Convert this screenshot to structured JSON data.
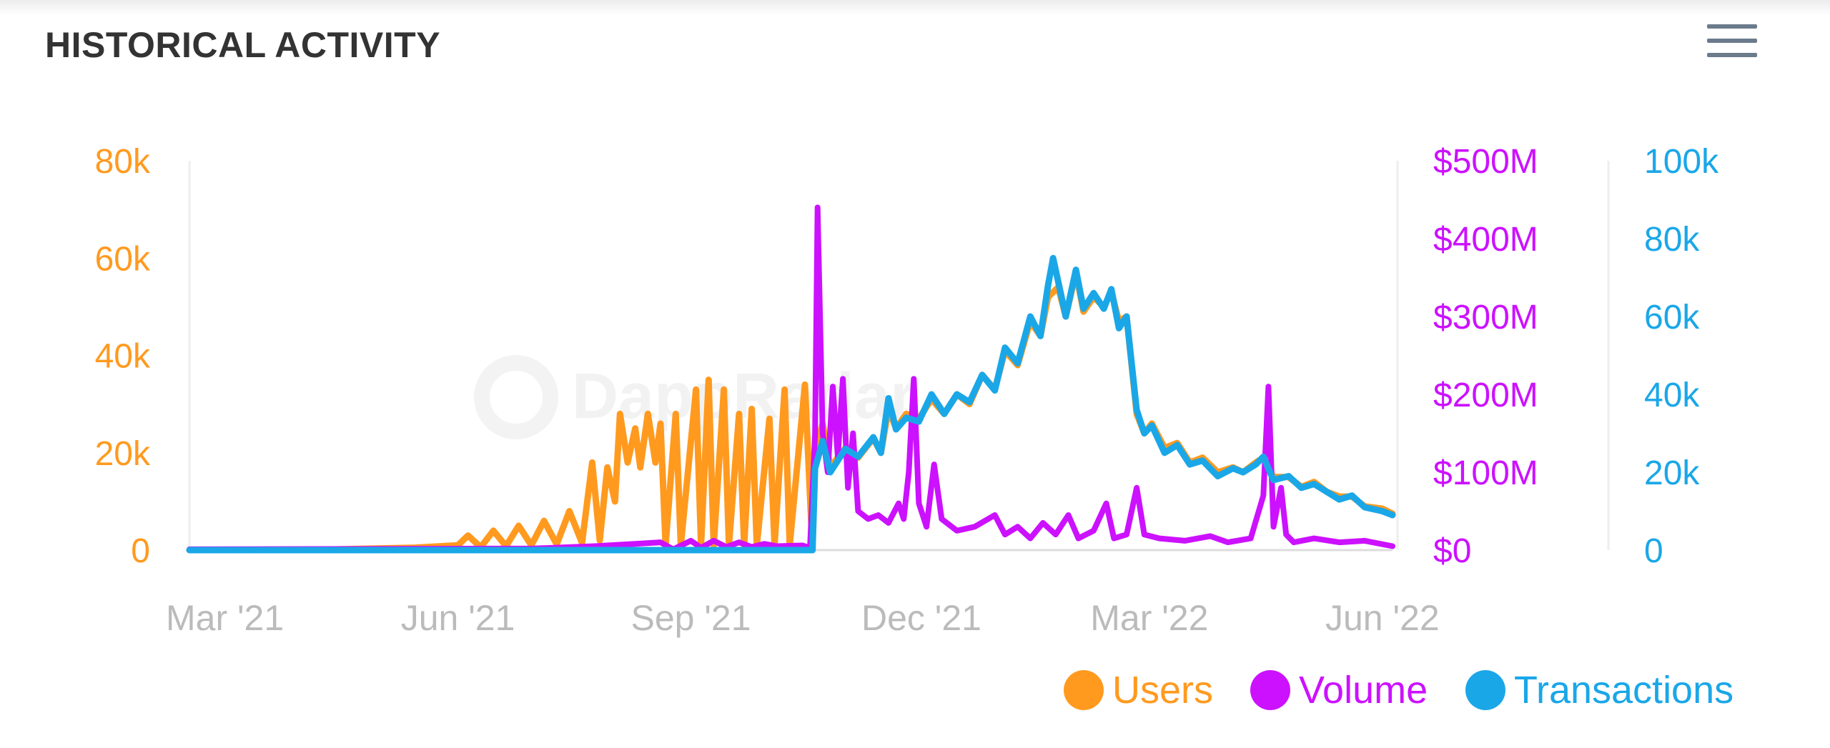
{
  "header": {
    "title": "HISTORICAL ACTIVITY",
    "menu_icon": "hamburger-menu-icon"
  },
  "watermark": {
    "text": "DappRadar"
  },
  "colors": {
    "users": "#ff9a1f",
    "volume": "#cc11ff",
    "transactions": "#1aa7e8",
    "axis_x": "#bbbbbb",
    "title": "#333333"
  },
  "legend": [
    {
      "key": "users",
      "label": "Users",
      "color": "#ff9a1f"
    },
    {
      "key": "volume",
      "label": "Volume",
      "color": "#cc11ff"
    },
    {
      "key": "transactions",
      "label": "Transactions",
      "color": "#1aa7e8"
    }
  ],
  "chart_data": {
    "type": "line",
    "title": "HISTORICAL ACTIVITY",
    "x_ticks": [
      "Mar '21",
      "Jun '21",
      "Sep '21",
      "Dec '21",
      "Mar '22",
      "Jun '22"
    ],
    "x_tick_dates": [
      "2021-03-01",
      "2021-06-01",
      "2021-09-01",
      "2021-12-01",
      "2022-03-01",
      "2022-06-01"
    ],
    "x_range": [
      "2021-02-15",
      "2022-06-05"
    ],
    "grid": false,
    "legend_position": "bottom-right",
    "y_axes": [
      {
        "name": "Users",
        "side": "left",
        "ylim": [
          0,
          80000
        ],
        "ticks": [
          "0",
          "20k",
          "40k",
          "60k",
          "80k"
        ],
        "color": "#ff9a1f"
      },
      {
        "name": "Volume",
        "side": "right",
        "ylim": [
          0,
          500000000
        ],
        "ticks": [
          "$0",
          "$100M",
          "$200M",
          "$300M",
          "$400M",
          "$500M"
        ],
        "color": "#cc11ff"
      },
      {
        "name": "Transactions",
        "side": "right-outer",
        "ylim": [
          0,
          100000
        ],
        "ticks": [
          "0",
          "20k",
          "40k",
          "60k",
          "80k",
          "100k"
        ],
        "color": "#1aa7e8"
      }
    ],
    "series": [
      {
        "name": "Users",
        "axis": 0,
        "color": "#ff9a1f",
        "width": 9,
        "points": [
          [
            "2021-02-15",
            0
          ],
          [
            "2021-04-01",
            0
          ],
          [
            "2021-05-15",
            500
          ],
          [
            "2021-06-01",
            1000
          ],
          [
            "2021-06-05",
            3000
          ],
          [
            "2021-06-10",
            600
          ],
          [
            "2021-06-15",
            4000
          ],
          [
            "2021-06-20",
            800
          ],
          [
            "2021-06-25",
            5000
          ],
          [
            "2021-06-30",
            1000
          ],
          [
            "2021-07-05",
            6000
          ],
          [
            "2021-07-10",
            1200
          ],
          [
            "2021-07-15",
            8000
          ],
          [
            "2021-07-20",
            1500
          ],
          [
            "2021-07-24",
            18000
          ],
          [
            "2021-07-27",
            2000
          ],
          [
            "2021-07-30",
            17000
          ],
          [
            "2021-08-02",
            10000
          ],
          [
            "2021-08-04",
            28000
          ],
          [
            "2021-08-07",
            18000
          ],
          [
            "2021-08-10",
            25000
          ],
          [
            "2021-08-12",
            17000
          ],
          [
            "2021-08-15",
            28000
          ],
          [
            "2021-08-18",
            18000
          ],
          [
            "2021-08-20",
            26000
          ],
          [
            "2021-08-22",
            1000
          ],
          [
            "2021-08-26",
            28000
          ],
          [
            "2021-08-28",
            1000
          ],
          [
            "2021-09-03",
            33000
          ],
          [
            "2021-09-05",
            1000
          ],
          [
            "2021-09-08",
            35000
          ],
          [
            "2021-09-10",
            1000
          ],
          [
            "2021-09-14",
            33000
          ],
          [
            "2021-09-16",
            1000
          ],
          [
            "2021-09-20",
            28000
          ],
          [
            "2021-09-22",
            1000
          ],
          [
            "2021-09-25",
            29000
          ],
          [
            "2021-09-27",
            1000
          ],
          [
            "2021-10-02",
            27000
          ],
          [
            "2021-10-04",
            1000
          ],
          [
            "2021-10-08",
            33000
          ],
          [
            "2021-10-10",
            1000
          ],
          [
            "2021-10-16",
            34000
          ],
          [
            "2021-10-19",
            0
          ],
          [
            "2021-10-20",
            20000
          ],
          [
            "2021-10-23",
            26000
          ],
          [
            "2021-10-26",
            17000
          ],
          [
            "2021-11-01",
            21000
          ],
          [
            "2021-11-06",
            19000
          ],
          [
            "2021-11-12",
            23000
          ],
          [
            "2021-11-15",
            20000
          ],
          [
            "2021-11-18",
            29000
          ],
          [
            "2021-11-21",
            25000
          ],
          [
            "2021-11-25",
            28000
          ],
          [
            "2021-11-30",
            27000
          ],
          [
            "2021-12-05",
            31000
          ],
          [
            "2021-12-10",
            28000
          ],
          [
            "2021-12-15",
            32000
          ],
          [
            "2021-12-20",
            30000
          ],
          [
            "2021-12-25",
            36000
          ],
          [
            "2021-12-30",
            33000
          ],
          [
            "2022-01-03",
            41000
          ],
          [
            "2022-01-08",
            38000
          ],
          [
            "2022-01-13",
            47000
          ],
          [
            "2022-01-17",
            44000
          ],
          [
            "2022-01-20",
            52000
          ],
          [
            "2022-01-24",
            54000
          ],
          [
            "2022-01-27",
            48000
          ],
          [
            "2022-01-31",
            57000
          ],
          [
            "2022-02-03",
            49000
          ],
          [
            "2022-02-07",
            52000
          ],
          [
            "2022-02-11",
            50000
          ],
          [
            "2022-02-14",
            53000
          ],
          [
            "2022-02-17",
            47000
          ],
          [
            "2022-02-20",
            48000
          ],
          [
            "2022-02-24",
            28000
          ],
          [
            "2022-02-27",
            24000
          ],
          [
            "2022-03-02",
            26000
          ],
          [
            "2022-03-07",
            21000
          ],
          [
            "2022-03-12",
            22000
          ],
          [
            "2022-03-17",
            18000
          ],
          [
            "2022-03-22",
            19000
          ],
          [
            "2022-03-28",
            16000
          ],
          [
            "2022-04-03",
            17000
          ],
          [
            "2022-04-07",
            16000
          ],
          [
            "2022-04-12",
            18000
          ],
          [
            "2022-04-15",
            19000
          ],
          [
            "2022-04-19",
            15000
          ],
          [
            "2022-04-25",
            15000
          ],
          [
            "2022-04-30",
            13000
          ],
          [
            "2022-05-05",
            14000
          ],
          [
            "2022-05-10",
            12000
          ],
          [
            "2022-05-15",
            11000
          ],
          [
            "2022-05-20",
            11000
          ],
          [
            "2022-05-25",
            9000
          ],
          [
            "2022-06-01",
            8500
          ],
          [
            "2022-06-05",
            7500
          ]
        ]
      },
      {
        "name": "Volume",
        "axis": 1,
        "color": "#cc11ff",
        "width": 8,
        "points": [
          [
            "2021-02-15",
            1000000
          ],
          [
            "2021-07-01",
            2000000
          ],
          [
            "2021-07-25",
            5000000
          ],
          [
            "2021-08-10",
            8000000
          ],
          [
            "2021-08-20",
            10000000
          ],
          [
            "2021-08-25",
            1000000
          ],
          [
            "2021-09-01",
            12000000
          ],
          [
            "2021-09-05",
            3000000
          ],
          [
            "2021-09-10",
            12000000
          ],
          [
            "2021-09-15",
            4000000
          ],
          [
            "2021-09-20",
            10000000
          ],
          [
            "2021-09-25",
            4000000
          ],
          [
            "2021-09-30",
            8000000
          ],
          [
            "2021-10-05",
            5000000
          ],
          [
            "2021-10-15",
            6000000
          ],
          [
            "2021-10-18",
            3000000
          ],
          [
            "2021-10-20",
            150000000
          ],
          [
            "2021-10-21",
            440000000
          ],
          [
            "2021-10-23",
            150000000
          ],
          [
            "2021-10-25",
            100000000
          ],
          [
            "2021-10-27",
            210000000
          ],
          [
            "2021-10-29",
            120000000
          ],
          [
            "2021-10-31",
            220000000
          ],
          [
            "2021-11-02",
            80000000
          ],
          [
            "2021-11-04",
            150000000
          ],
          [
            "2021-11-06",
            50000000
          ],
          [
            "2021-11-10",
            40000000
          ],
          [
            "2021-11-14",
            45000000
          ],
          [
            "2021-11-18",
            35000000
          ],
          [
            "2021-11-22",
            60000000
          ],
          [
            "2021-11-24",
            40000000
          ],
          [
            "2021-11-26",
            100000000
          ],
          [
            "2021-11-28",
            220000000
          ],
          [
            "2021-11-30",
            60000000
          ],
          [
            "2021-12-03",
            30000000
          ],
          [
            "2021-12-06",
            110000000
          ],
          [
            "2021-12-09",
            40000000
          ],
          [
            "2021-12-15",
            25000000
          ],
          [
            "2021-12-22",
            30000000
          ],
          [
            "2021-12-30",
            45000000
          ],
          [
            "2022-01-03",
            20000000
          ],
          [
            "2022-01-08",
            30000000
          ],
          [
            "2022-01-13",
            15000000
          ],
          [
            "2022-01-18",
            35000000
          ],
          [
            "2022-01-23",
            20000000
          ],
          [
            "2022-01-28",
            45000000
          ],
          [
            "2022-02-01",
            15000000
          ],
          [
            "2022-02-07",
            25000000
          ],
          [
            "2022-02-12",
            60000000
          ],
          [
            "2022-02-15",
            15000000
          ],
          [
            "2022-02-20",
            20000000
          ],
          [
            "2022-02-24",
            80000000
          ],
          [
            "2022-02-27",
            20000000
          ],
          [
            "2022-03-05",
            15000000
          ],
          [
            "2022-03-15",
            12000000
          ],
          [
            "2022-03-25",
            18000000
          ],
          [
            "2022-04-01",
            10000000
          ],
          [
            "2022-04-10",
            15000000
          ],
          [
            "2022-04-15",
            70000000
          ],
          [
            "2022-04-17",
            210000000
          ],
          [
            "2022-04-19",
            30000000
          ],
          [
            "2022-04-22",
            80000000
          ],
          [
            "2022-04-24",
            20000000
          ],
          [
            "2022-04-27",
            10000000
          ],
          [
            "2022-05-05",
            15000000
          ],
          [
            "2022-05-15",
            10000000
          ],
          [
            "2022-05-25",
            12000000
          ],
          [
            "2022-06-05",
            5000000
          ]
        ]
      },
      {
        "name": "Transactions",
        "axis": 2,
        "color": "#1aa7e8",
        "width": 9,
        "points": [
          [
            "2021-02-15",
            0
          ],
          [
            "2021-10-19",
            0
          ],
          [
            "2021-10-20",
            21000
          ],
          [
            "2021-10-23",
            28000
          ],
          [
            "2021-10-26",
            20000
          ],
          [
            "2021-11-01",
            26000
          ],
          [
            "2021-11-06",
            24000
          ],
          [
            "2021-11-12",
            29000
          ],
          [
            "2021-11-15",
            25000
          ],
          [
            "2021-11-18",
            39000
          ],
          [
            "2021-11-21",
            31000
          ],
          [
            "2021-11-25",
            34000
          ],
          [
            "2021-11-30",
            33000
          ],
          [
            "2021-12-05",
            40000
          ],
          [
            "2021-12-10",
            35000
          ],
          [
            "2021-12-15",
            40000
          ],
          [
            "2021-12-20",
            38000
          ],
          [
            "2021-12-25",
            45000
          ],
          [
            "2021-12-30",
            41000
          ],
          [
            "2022-01-03",
            52000
          ],
          [
            "2022-01-08",
            48000
          ],
          [
            "2022-01-13",
            60000
          ],
          [
            "2022-01-17",
            55000
          ],
          [
            "2022-01-20",
            68000
          ],
          [
            "2022-01-22",
            75000
          ],
          [
            "2022-01-24",
            69000
          ],
          [
            "2022-01-27",
            60000
          ],
          [
            "2022-01-31",
            72000
          ],
          [
            "2022-02-03",
            62000
          ],
          [
            "2022-02-07",
            66000
          ],
          [
            "2022-02-11",
            62000
          ],
          [
            "2022-02-14",
            67000
          ],
          [
            "2022-02-17",
            57000
          ],
          [
            "2022-02-20",
            60000
          ],
          [
            "2022-02-24",
            36000
          ],
          [
            "2022-02-27",
            30000
          ],
          [
            "2022-03-02",
            32000
          ],
          [
            "2022-03-07",
            25000
          ],
          [
            "2022-03-12",
            27000
          ],
          [
            "2022-03-17",
            22000
          ],
          [
            "2022-03-22",
            23000
          ],
          [
            "2022-03-28",
            19000
          ],
          [
            "2022-04-03",
            21000
          ],
          [
            "2022-04-07",
            20000
          ],
          [
            "2022-04-12",
            22000
          ],
          [
            "2022-04-15",
            24000
          ],
          [
            "2022-04-19",
            18000
          ],
          [
            "2022-04-25",
            19000
          ],
          [
            "2022-04-30",
            16000
          ],
          [
            "2022-05-05",
            17000
          ],
          [
            "2022-05-10",
            15000
          ],
          [
            "2022-05-15",
            13000
          ],
          [
            "2022-05-20",
            14000
          ],
          [
            "2022-05-25",
            11000
          ],
          [
            "2022-06-01",
            10000
          ],
          [
            "2022-06-05",
            9000
          ]
        ]
      }
    ]
  }
}
